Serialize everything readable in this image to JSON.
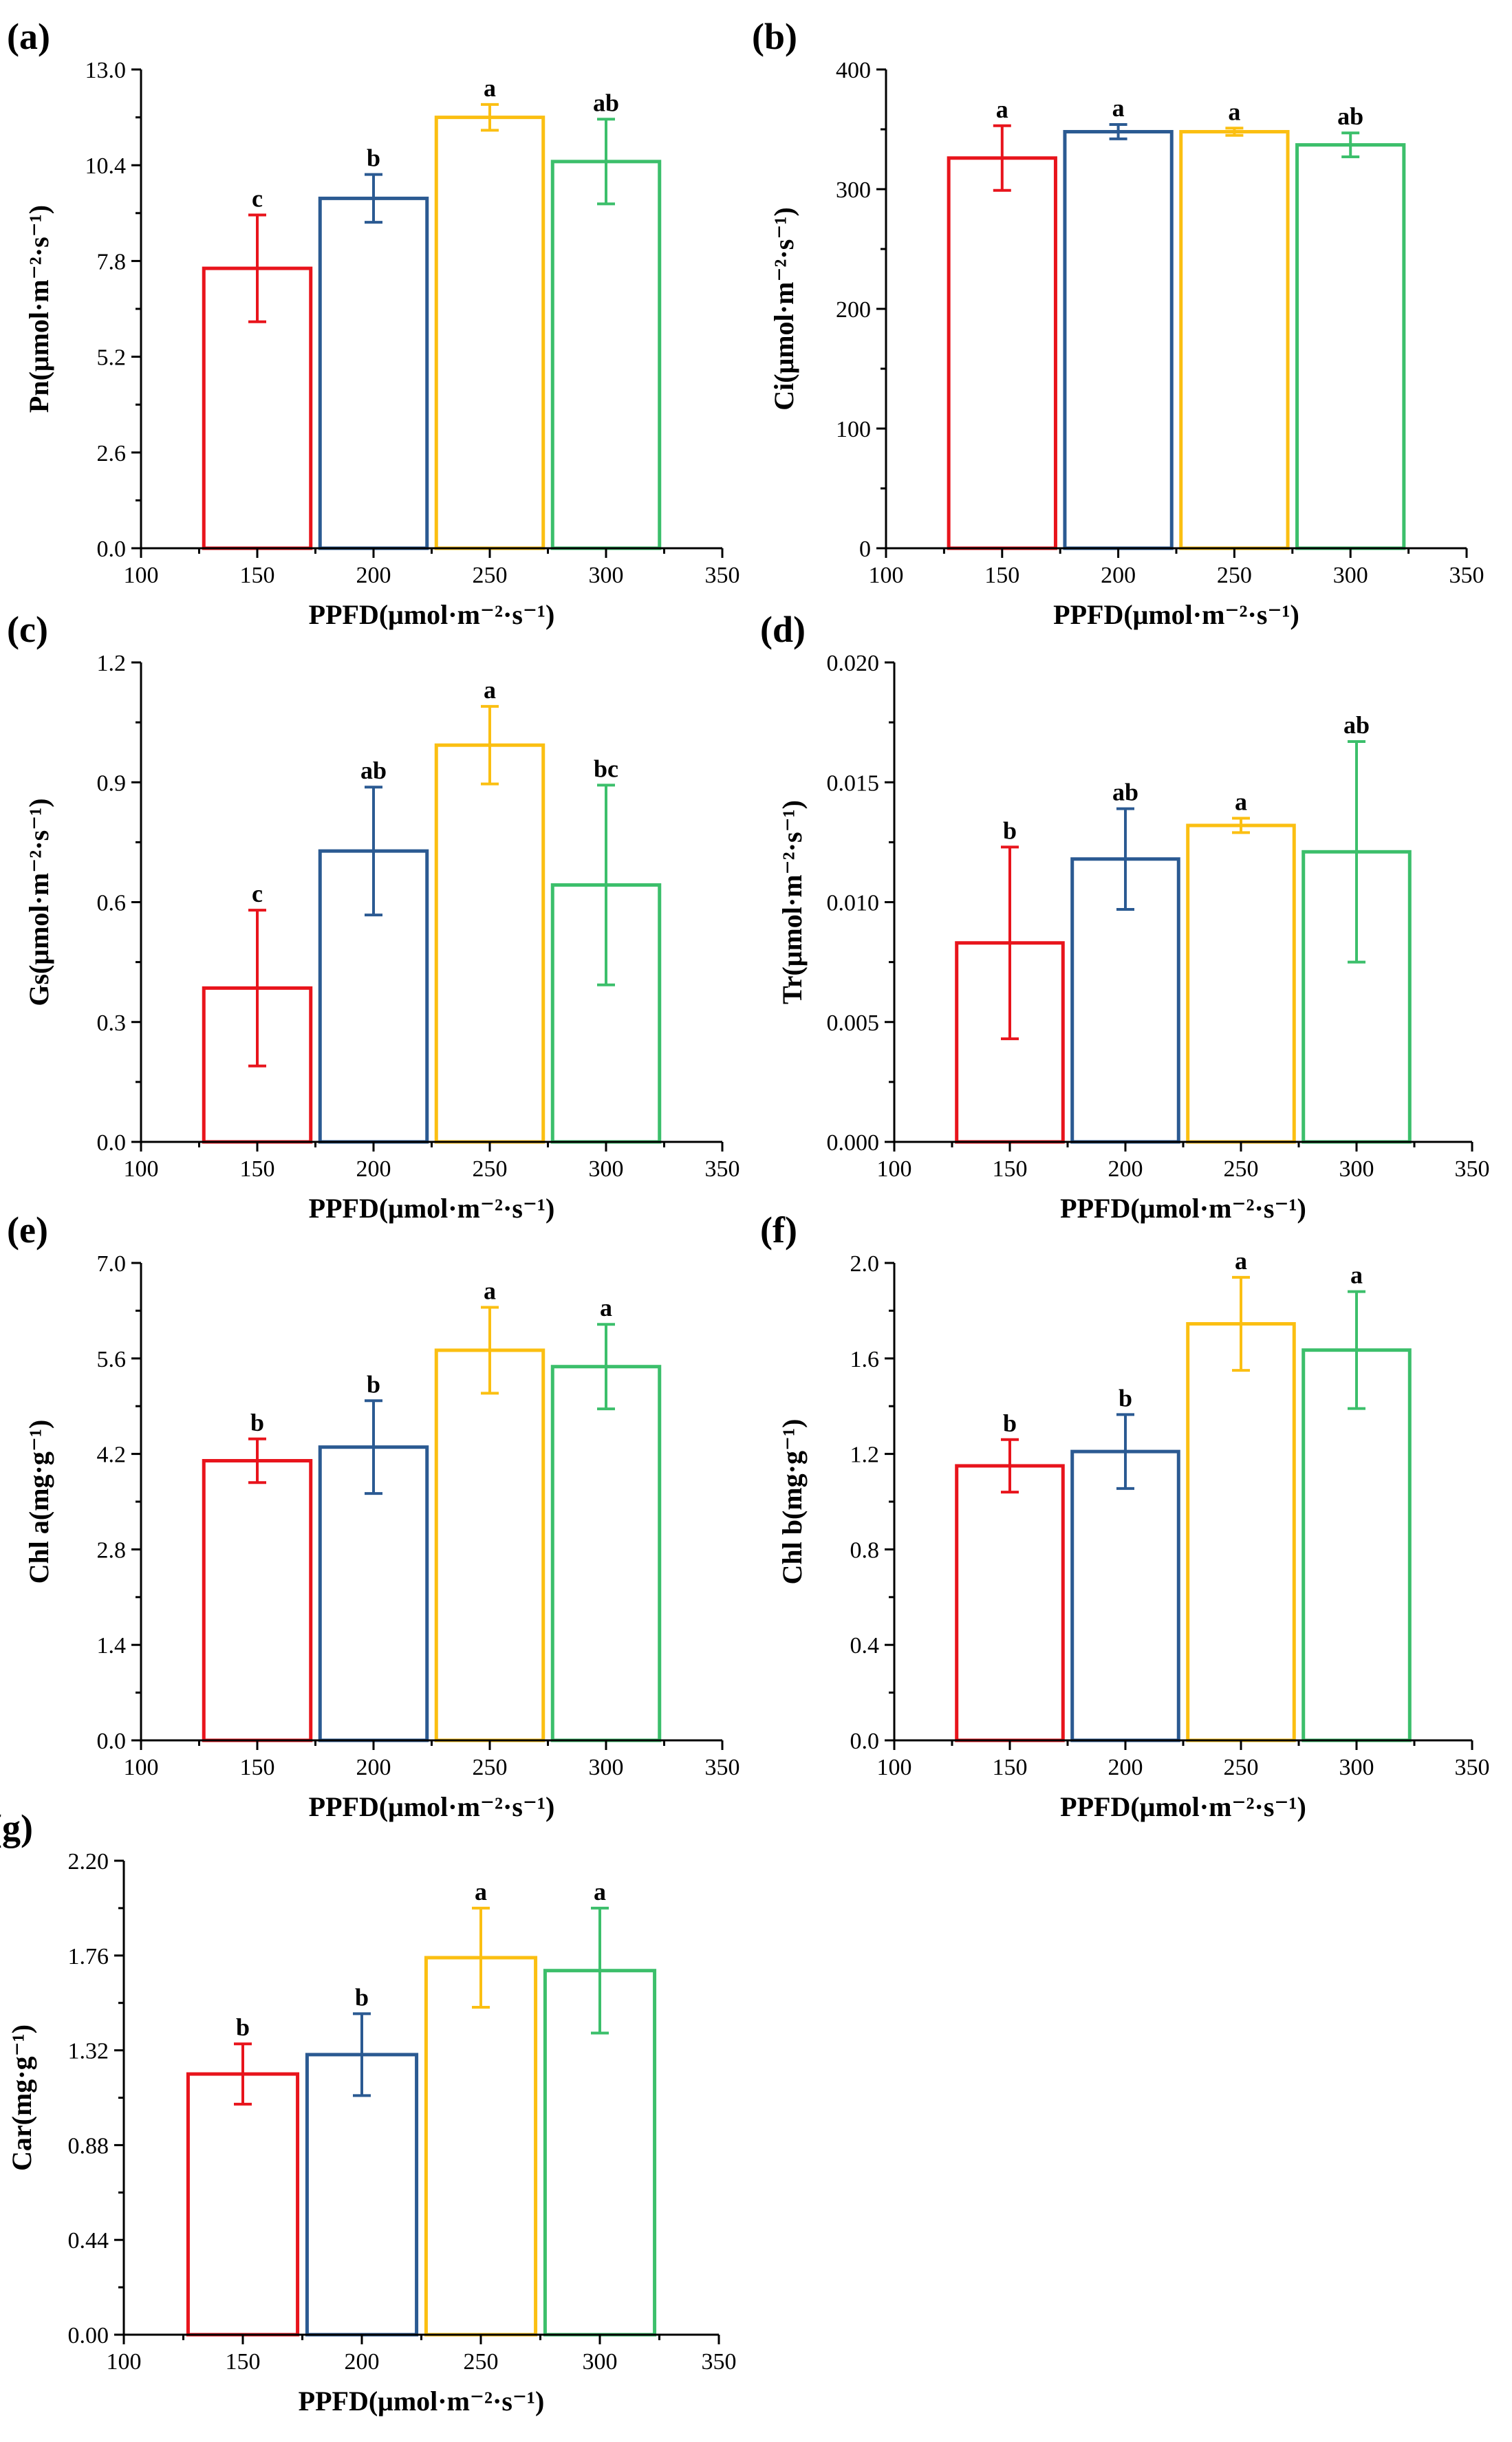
{
  "colors": {
    "150": "#e8141c",
    "200": "#2b5a92",
    "250": "#fbbf12",
    "300": "#3cbf6b"
  },
  "chart_data": [
    {
      "type": "bar",
      "panel_label": "(a)",
      "categories": [
        "150",
        "200",
        "250",
        "300"
      ],
      "values": [
        7.6,
        9.5,
        11.7,
        10.5
      ],
      "errors": [
        1.45,
        0.65,
        0.35,
        1.15
      ],
      "significance": [
        "c",
        "b",
        "a",
        "ab"
      ],
      "xlabel": "PPFD(μmol·m⁻²·s⁻¹)",
      "ylabel": "Pn(μmol·m⁻²·s⁻¹)",
      "xlim": [
        100,
        350
      ],
      "ylim": [
        0,
        13
      ],
      "xticks": [
        "100",
        "150",
        "200",
        "250",
        "300",
        "350"
      ],
      "yticks": [
        "0.0",
        "2.6",
        "5.2",
        "7.8",
        "10.4",
        "13.0"
      ]
    },
    {
      "type": "bar",
      "panel_label": "(b)",
      "categories": [
        "150",
        "200",
        "250",
        "300"
      ],
      "values": [
        326,
        348,
        348,
        337
      ],
      "errors": [
        27,
        6,
        3,
        10
      ],
      "significance": [
        "a",
        "a",
        "a",
        "ab"
      ],
      "xlabel": "PPFD(μmol·m⁻²·s⁻¹)",
      "ylabel": "Ci(μmol·m⁻²·s⁻¹)",
      "xlim": [
        100,
        350
      ],
      "ylim": [
        0,
        400
      ],
      "xticks": [
        "100",
        "150",
        "200",
        "250",
        "300",
        "350"
      ],
      "yticks": [
        "0",
        "100",
        "200",
        "300",
        "400"
      ]
    },
    {
      "type": "bar",
      "panel_label": "(c)",
      "categories": [
        "150",
        "200",
        "250",
        "300"
      ],
      "values": [
        0.385,
        0.728,
        0.993,
        0.643
      ],
      "errors": [
        0.195,
        0.16,
        0.097,
        0.25
      ],
      "significance": [
        "c",
        "ab",
        "a",
        "bc"
      ],
      "xlabel": "PPFD(μmol·m⁻²·s⁻¹)",
      "ylabel": "Gs(μmol·m⁻²·s⁻¹)",
      "xlim": [
        100,
        350
      ],
      "ylim": [
        0,
        1.2
      ],
      "xticks": [
        "100",
        "150",
        "200",
        "250",
        "300",
        "350"
      ],
      "yticks": [
        "0.0",
        "0.3",
        "0.6",
        "0.9",
        "1.2"
      ]
    },
    {
      "type": "bar",
      "panel_label": "(d)",
      "categories": [
        "150",
        "200",
        "250",
        "300"
      ],
      "values": [
        0.0083,
        0.0118,
        0.0132,
        0.0121
      ],
      "errors": [
        0.004,
        0.0021,
        0.0003,
        0.0046
      ],
      "significance": [
        "b",
        "ab",
        "a",
        "ab"
      ],
      "xlabel": "PPFD(μmol·m⁻²·s⁻¹)",
      "ylabel": "Tr(μmol·m⁻²·s⁻¹)",
      "xlim": [
        100,
        350
      ],
      "ylim": [
        0,
        0.02
      ],
      "xticks": [
        "100",
        "150",
        "200",
        "250",
        "300",
        "350"
      ],
      "yticks": [
        "0.000",
        "0.005",
        "0.010",
        "0.015",
        "0.020"
      ]
    },
    {
      "type": "bar",
      "panel_label": "(e)",
      "categories": [
        "150",
        "200",
        "250",
        "300"
      ],
      "values": [
        4.1,
        4.3,
        5.72,
        5.48
      ],
      "errors": [
        0.32,
        0.68,
        0.63,
        0.62
      ],
      "significance": [
        "b",
        "b",
        "a",
        "a"
      ],
      "xlabel": "PPFD(μmol·m⁻²·s⁻¹)",
      "ylabel": "Chl a(mg·g⁻¹)",
      "xlim": [
        100,
        350
      ],
      "ylim": [
        0,
        7
      ],
      "xticks": [
        "100",
        "150",
        "200",
        "250",
        "300",
        "350"
      ],
      "yticks": [
        "0.0",
        "1.4",
        "2.8",
        "4.2",
        "5.6",
        "7.0"
      ]
    },
    {
      "type": "bar",
      "panel_label": "(f)",
      "categories": [
        "150",
        "200",
        "250",
        "300"
      ],
      "values": [
        1.15,
        1.21,
        1.745,
        1.635
      ],
      "errors": [
        0.11,
        0.155,
        0.195,
        0.245
      ],
      "significance": [
        "b",
        "b",
        "a",
        "a"
      ],
      "xlabel": "PPFD(μmol·m⁻²·s⁻¹)",
      "ylabel": "Chl b(mg·g⁻¹)",
      "xlim": [
        100,
        350
      ],
      "ylim": [
        0,
        2
      ],
      "xticks": [
        "100",
        "150",
        "200",
        "250",
        "300",
        "350"
      ],
      "yticks": [
        "0.0",
        "0.4",
        "0.8",
        "1.2",
        "1.6",
        "2.0"
      ]
    },
    {
      "type": "bar",
      "panel_label": "(g)",
      "categories": [
        "150",
        "200",
        "250",
        "300"
      ],
      "values": [
        1.21,
        1.3,
        1.75,
        1.69
      ],
      "errors": [
        0.14,
        0.19,
        0.23,
        0.29
      ],
      "significance": [
        "b",
        "b",
        "a",
        "a"
      ],
      "xlabel": "PPFD(μmol·m⁻²·s⁻¹)",
      "ylabel": "Car(mg·g⁻¹)",
      "xlim": [
        100,
        350
      ],
      "ylim": [
        0,
        2.2
      ],
      "xticks": [
        "100",
        "150",
        "200",
        "250",
        "300",
        "350"
      ],
      "yticks": [
        "0.00",
        "0.44",
        "0.88",
        "1.32",
        "1.76",
        "2.20"
      ]
    }
  ]
}
